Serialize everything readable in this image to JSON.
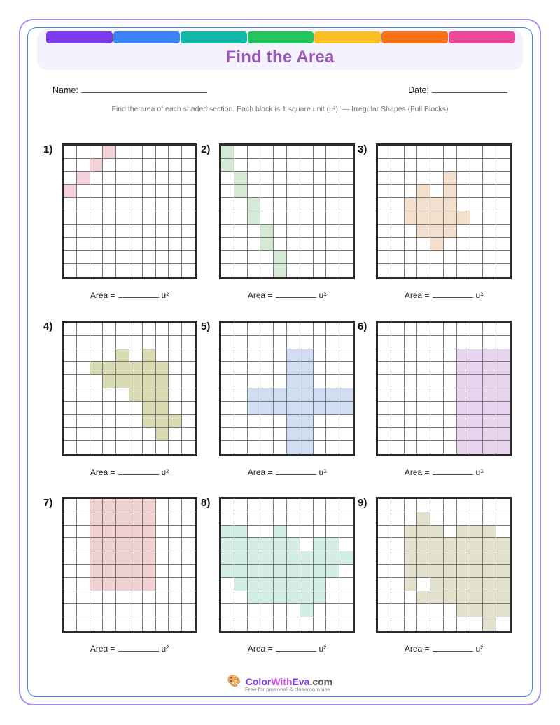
{
  "header": {
    "title": "Find the Area",
    "color_bar": [
      "#7c3aed",
      "#3b82f6",
      "#14b8a6",
      "#22c55e",
      "#fbbf24",
      "#f97316",
      "#ec4899"
    ]
  },
  "form": {
    "name_label": "Name:",
    "date_label": "Date:"
  },
  "instructions": "Find the area of each shaded section. Each block is 1 square unit (u²). — Irregular Shapes (Full Blocks)",
  "area_prefix": "Area =",
  "area_unit": "u²",
  "grid_size": 10,
  "problems": [
    {
      "label": "1)",
      "color": "#f4d0d8",
      "cells": [
        [
          0,
          3
        ],
        [
          1,
          2
        ],
        [
          2,
          1
        ],
        [
          3,
          0
        ]
      ]
    },
    {
      "label": "2)",
      "color": "#d4ead4",
      "cells": [
        [
          0,
          0
        ],
        [
          1,
          0
        ],
        [
          2,
          1
        ],
        [
          3,
          1
        ],
        [
          4,
          2
        ],
        [
          5,
          2
        ],
        [
          6,
          3
        ],
        [
          7,
          3
        ],
        [
          8,
          4
        ],
        [
          9,
          4
        ]
      ]
    },
    {
      "label": "3)",
      "color": "#f3dfcc",
      "cells": [
        [
          2,
          5
        ],
        [
          3,
          3
        ],
        [
          3,
          5
        ],
        [
          4,
          2
        ],
        [
          4,
          3
        ],
        [
          4,
          4
        ],
        [
          4,
          5
        ],
        [
          5,
          2
        ],
        [
          5,
          3
        ],
        [
          5,
          4
        ],
        [
          5,
          5
        ],
        [
          5,
          6
        ],
        [
          6,
          3
        ],
        [
          6,
          4
        ],
        [
          6,
          5
        ],
        [
          7,
          4
        ]
      ]
    },
    {
      "label": "4)",
      "color": "#d9dbb3",
      "cells": [
        [
          2,
          4
        ],
        [
          2,
          6
        ],
        [
          3,
          2
        ],
        [
          3,
          3
        ],
        [
          3,
          4
        ],
        [
          3,
          5
        ],
        [
          3,
          6
        ],
        [
          3,
          7
        ],
        [
          4,
          3
        ],
        [
          4,
          4
        ],
        [
          4,
          5
        ],
        [
          4,
          6
        ],
        [
          4,
          7
        ],
        [
          5,
          5
        ],
        [
          5,
          6
        ],
        [
          5,
          7
        ],
        [
          6,
          6
        ],
        [
          6,
          7
        ],
        [
          7,
          6
        ],
        [
          7,
          7
        ],
        [
          7,
          8
        ],
        [
          8,
          7
        ]
      ]
    },
    {
      "label": "5)",
      "color": "#d0ddf2",
      "cells": [
        [
          2,
          5
        ],
        [
          2,
          6
        ],
        [
          3,
          5
        ],
        [
          3,
          6
        ],
        [
          4,
          5
        ],
        [
          4,
          6
        ],
        [
          5,
          2
        ],
        [
          5,
          3
        ],
        [
          5,
          4
        ],
        [
          5,
          5
        ],
        [
          5,
          6
        ],
        [
          5,
          7
        ],
        [
          5,
          8
        ],
        [
          5,
          9
        ],
        [
          6,
          2
        ],
        [
          6,
          3
        ],
        [
          6,
          4
        ],
        [
          6,
          5
        ],
        [
          6,
          6
        ],
        [
          6,
          7
        ],
        [
          6,
          8
        ],
        [
          6,
          9
        ],
        [
          7,
          5
        ],
        [
          7,
          6
        ],
        [
          8,
          5
        ],
        [
          8,
          6
        ],
        [
          9,
          5
        ],
        [
          9,
          6
        ]
      ]
    },
    {
      "label": "6)",
      "color": "#e8d4ef",
      "cells": [
        [
          2,
          6
        ],
        [
          2,
          7
        ],
        [
          2,
          8
        ],
        [
          2,
          9
        ],
        [
          3,
          6
        ],
        [
          3,
          7
        ],
        [
          3,
          8
        ],
        [
          3,
          9
        ],
        [
          4,
          6
        ],
        [
          4,
          7
        ],
        [
          4,
          8
        ],
        [
          4,
          9
        ],
        [
          5,
          6
        ],
        [
          5,
          7
        ],
        [
          5,
          8
        ],
        [
          5,
          9
        ],
        [
          6,
          6
        ],
        [
          6,
          7
        ],
        [
          6,
          8
        ],
        [
          6,
          9
        ],
        [
          7,
          6
        ],
        [
          7,
          7
        ],
        [
          7,
          8
        ],
        [
          7,
          9
        ],
        [
          8,
          6
        ],
        [
          8,
          7
        ],
        [
          8,
          8
        ],
        [
          8,
          9
        ],
        [
          9,
          6
        ],
        [
          9,
          7
        ],
        [
          9,
          8
        ],
        [
          9,
          9
        ]
      ]
    },
    {
      "label": "7)",
      "color": "#f1d1d1",
      "cells": [
        [
          0,
          2
        ],
        [
          0,
          3
        ],
        [
          0,
          4
        ],
        [
          0,
          5
        ],
        [
          0,
          6
        ],
        [
          1,
          2
        ],
        [
          1,
          3
        ],
        [
          1,
          4
        ],
        [
          1,
          5
        ],
        [
          1,
          6
        ],
        [
          2,
          2
        ],
        [
          2,
          3
        ],
        [
          2,
          4
        ],
        [
          2,
          5
        ],
        [
          2,
          6
        ],
        [
          3,
          2
        ],
        [
          3,
          3
        ],
        [
          3,
          4
        ],
        [
          3,
          5
        ],
        [
          3,
          6
        ],
        [
          4,
          2
        ],
        [
          4,
          3
        ],
        [
          4,
          4
        ],
        [
          4,
          5
        ],
        [
          4,
          6
        ],
        [
          5,
          2
        ],
        [
          5,
          3
        ],
        [
          5,
          4
        ],
        [
          5,
          5
        ],
        [
          5,
          6
        ],
        [
          6,
          2
        ],
        [
          6,
          3
        ],
        [
          6,
          4
        ],
        [
          6,
          5
        ],
        [
          6,
          6
        ]
      ]
    },
    {
      "label": "8)",
      "color": "#d2eee7",
      "cells": [
        [
          2,
          0
        ],
        [
          2,
          1
        ],
        [
          2,
          4
        ],
        [
          3,
          0
        ],
        [
          3,
          1
        ],
        [
          3,
          2
        ],
        [
          3,
          3
        ],
        [
          3,
          4
        ],
        [
          3,
          5
        ],
        [
          3,
          7
        ],
        [
          3,
          8
        ],
        [
          4,
          0
        ],
        [
          4,
          1
        ],
        [
          4,
          2
        ],
        [
          4,
          3
        ],
        [
          4,
          4
        ],
        [
          4,
          5
        ],
        [
          4,
          6
        ],
        [
          4,
          7
        ],
        [
          4,
          8
        ],
        [
          4,
          9
        ],
        [
          5,
          0
        ],
        [
          5,
          1
        ],
        [
          5,
          2
        ],
        [
          5,
          3
        ],
        [
          5,
          4
        ],
        [
          5,
          5
        ],
        [
          5,
          6
        ],
        [
          5,
          7
        ],
        [
          5,
          8
        ],
        [
          6,
          1
        ],
        [
          6,
          2
        ],
        [
          6,
          3
        ],
        [
          6,
          4
        ],
        [
          6,
          5
        ],
        [
          6,
          6
        ],
        [
          6,
          7
        ],
        [
          7,
          2
        ],
        [
          7,
          3
        ],
        [
          7,
          4
        ],
        [
          7,
          5
        ],
        [
          7,
          6
        ],
        [
          7,
          7
        ],
        [
          8,
          6
        ]
      ]
    },
    {
      "label": "9)",
      "color": "#e3e2cd",
      "cells": [
        [
          1,
          3
        ],
        [
          2,
          2
        ],
        [
          2,
          3
        ],
        [
          2,
          4
        ],
        [
          2,
          6
        ],
        [
          2,
          7
        ],
        [
          2,
          8
        ],
        [
          3,
          2
        ],
        [
          3,
          3
        ],
        [
          3,
          4
        ],
        [
          3,
          5
        ],
        [
          3,
          6
        ],
        [
          3,
          7
        ],
        [
          3,
          8
        ],
        [
          3,
          9
        ],
        [
          4,
          2
        ],
        [
          4,
          3
        ],
        [
          4,
          4
        ],
        [
          4,
          5
        ],
        [
          4,
          6
        ],
        [
          4,
          7
        ],
        [
          4,
          8
        ],
        [
          4,
          9
        ],
        [
          5,
          2
        ],
        [
          5,
          3
        ],
        [
          5,
          4
        ],
        [
          5,
          5
        ],
        [
          5,
          6
        ],
        [
          5,
          7
        ],
        [
          5,
          8
        ],
        [
          5,
          9
        ],
        [
          6,
          2
        ],
        [
          6,
          4
        ],
        [
          6,
          5
        ],
        [
          6,
          6
        ],
        [
          6,
          7
        ],
        [
          6,
          8
        ],
        [
          6,
          9
        ],
        [
          7,
          3
        ],
        [
          7,
          4
        ],
        [
          7,
          5
        ],
        [
          7,
          6
        ],
        [
          7,
          7
        ],
        [
          7,
          8
        ],
        [
          7,
          9
        ],
        [
          8,
          6
        ],
        [
          8,
          7
        ],
        [
          8,
          8
        ],
        [
          8,
          9
        ],
        [
          9,
          8
        ]
      ]
    }
  ],
  "footer": {
    "brand_part1": "Color",
    "brand_part2": "With",
    "brand_part3": "Eva",
    "brand_part4": ".com",
    "tagline": "Free for personal & classroom use",
    "logo_icon": "palette-icon"
  }
}
